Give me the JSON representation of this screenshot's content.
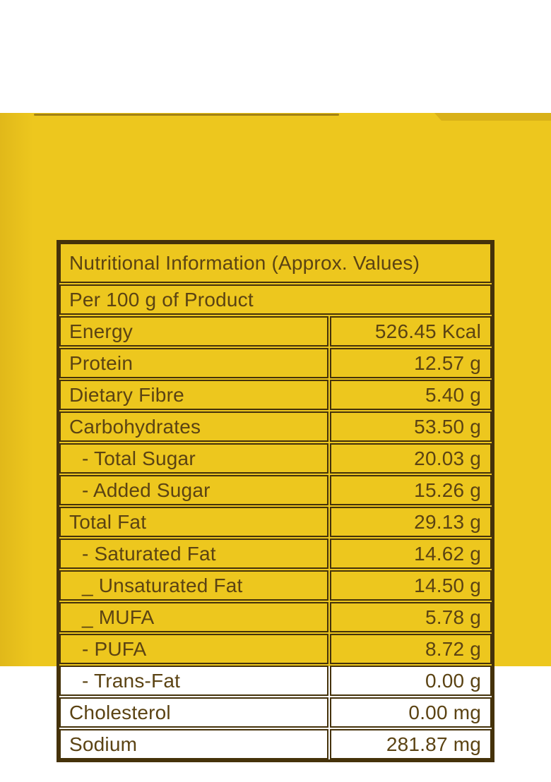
{
  "label": {
    "colors": {
      "package_yellow": "#edc71e",
      "line_brown": "#45320a",
      "text_brown": "#5b4313",
      "page_white": "#ffffff"
    },
    "header": "Nutritional Information (Approx. Values)",
    "subheader": "Per 100 g of Product",
    "rows": [
      {
        "name": "Energy",
        "value": "526.45 Kcal"
      },
      {
        "name": "Protein",
        "value": "12.57 g"
      },
      {
        "name": "Dietary Fibre",
        "value": "5.40 g"
      },
      {
        "name": "Carbohydrates",
        "value": "53.50 g"
      },
      {
        "name": "- Total Sugar",
        "value": "20.03 g"
      },
      {
        "name": "- Added Sugar",
        "value": "15.26 g"
      },
      {
        "name": "Total Fat",
        "value": "29.13 g"
      },
      {
        "name": "- Saturated Fat",
        "value": "14.62 g"
      },
      {
        "name": "_ Unsaturated Fat",
        "value": "14.50 g"
      },
      {
        "name": "_ MUFA",
        "value": "5.78 g"
      },
      {
        "name": "- PUFA",
        "value": "8.72 g"
      },
      {
        "name": "- Trans-Fat",
        "value": "0.00 g"
      },
      {
        "name": "Cholesterol",
        "value": "0.00 mg"
      },
      {
        "name": "Sodium",
        "value": "281.87 mg"
      }
    ]
  }
}
